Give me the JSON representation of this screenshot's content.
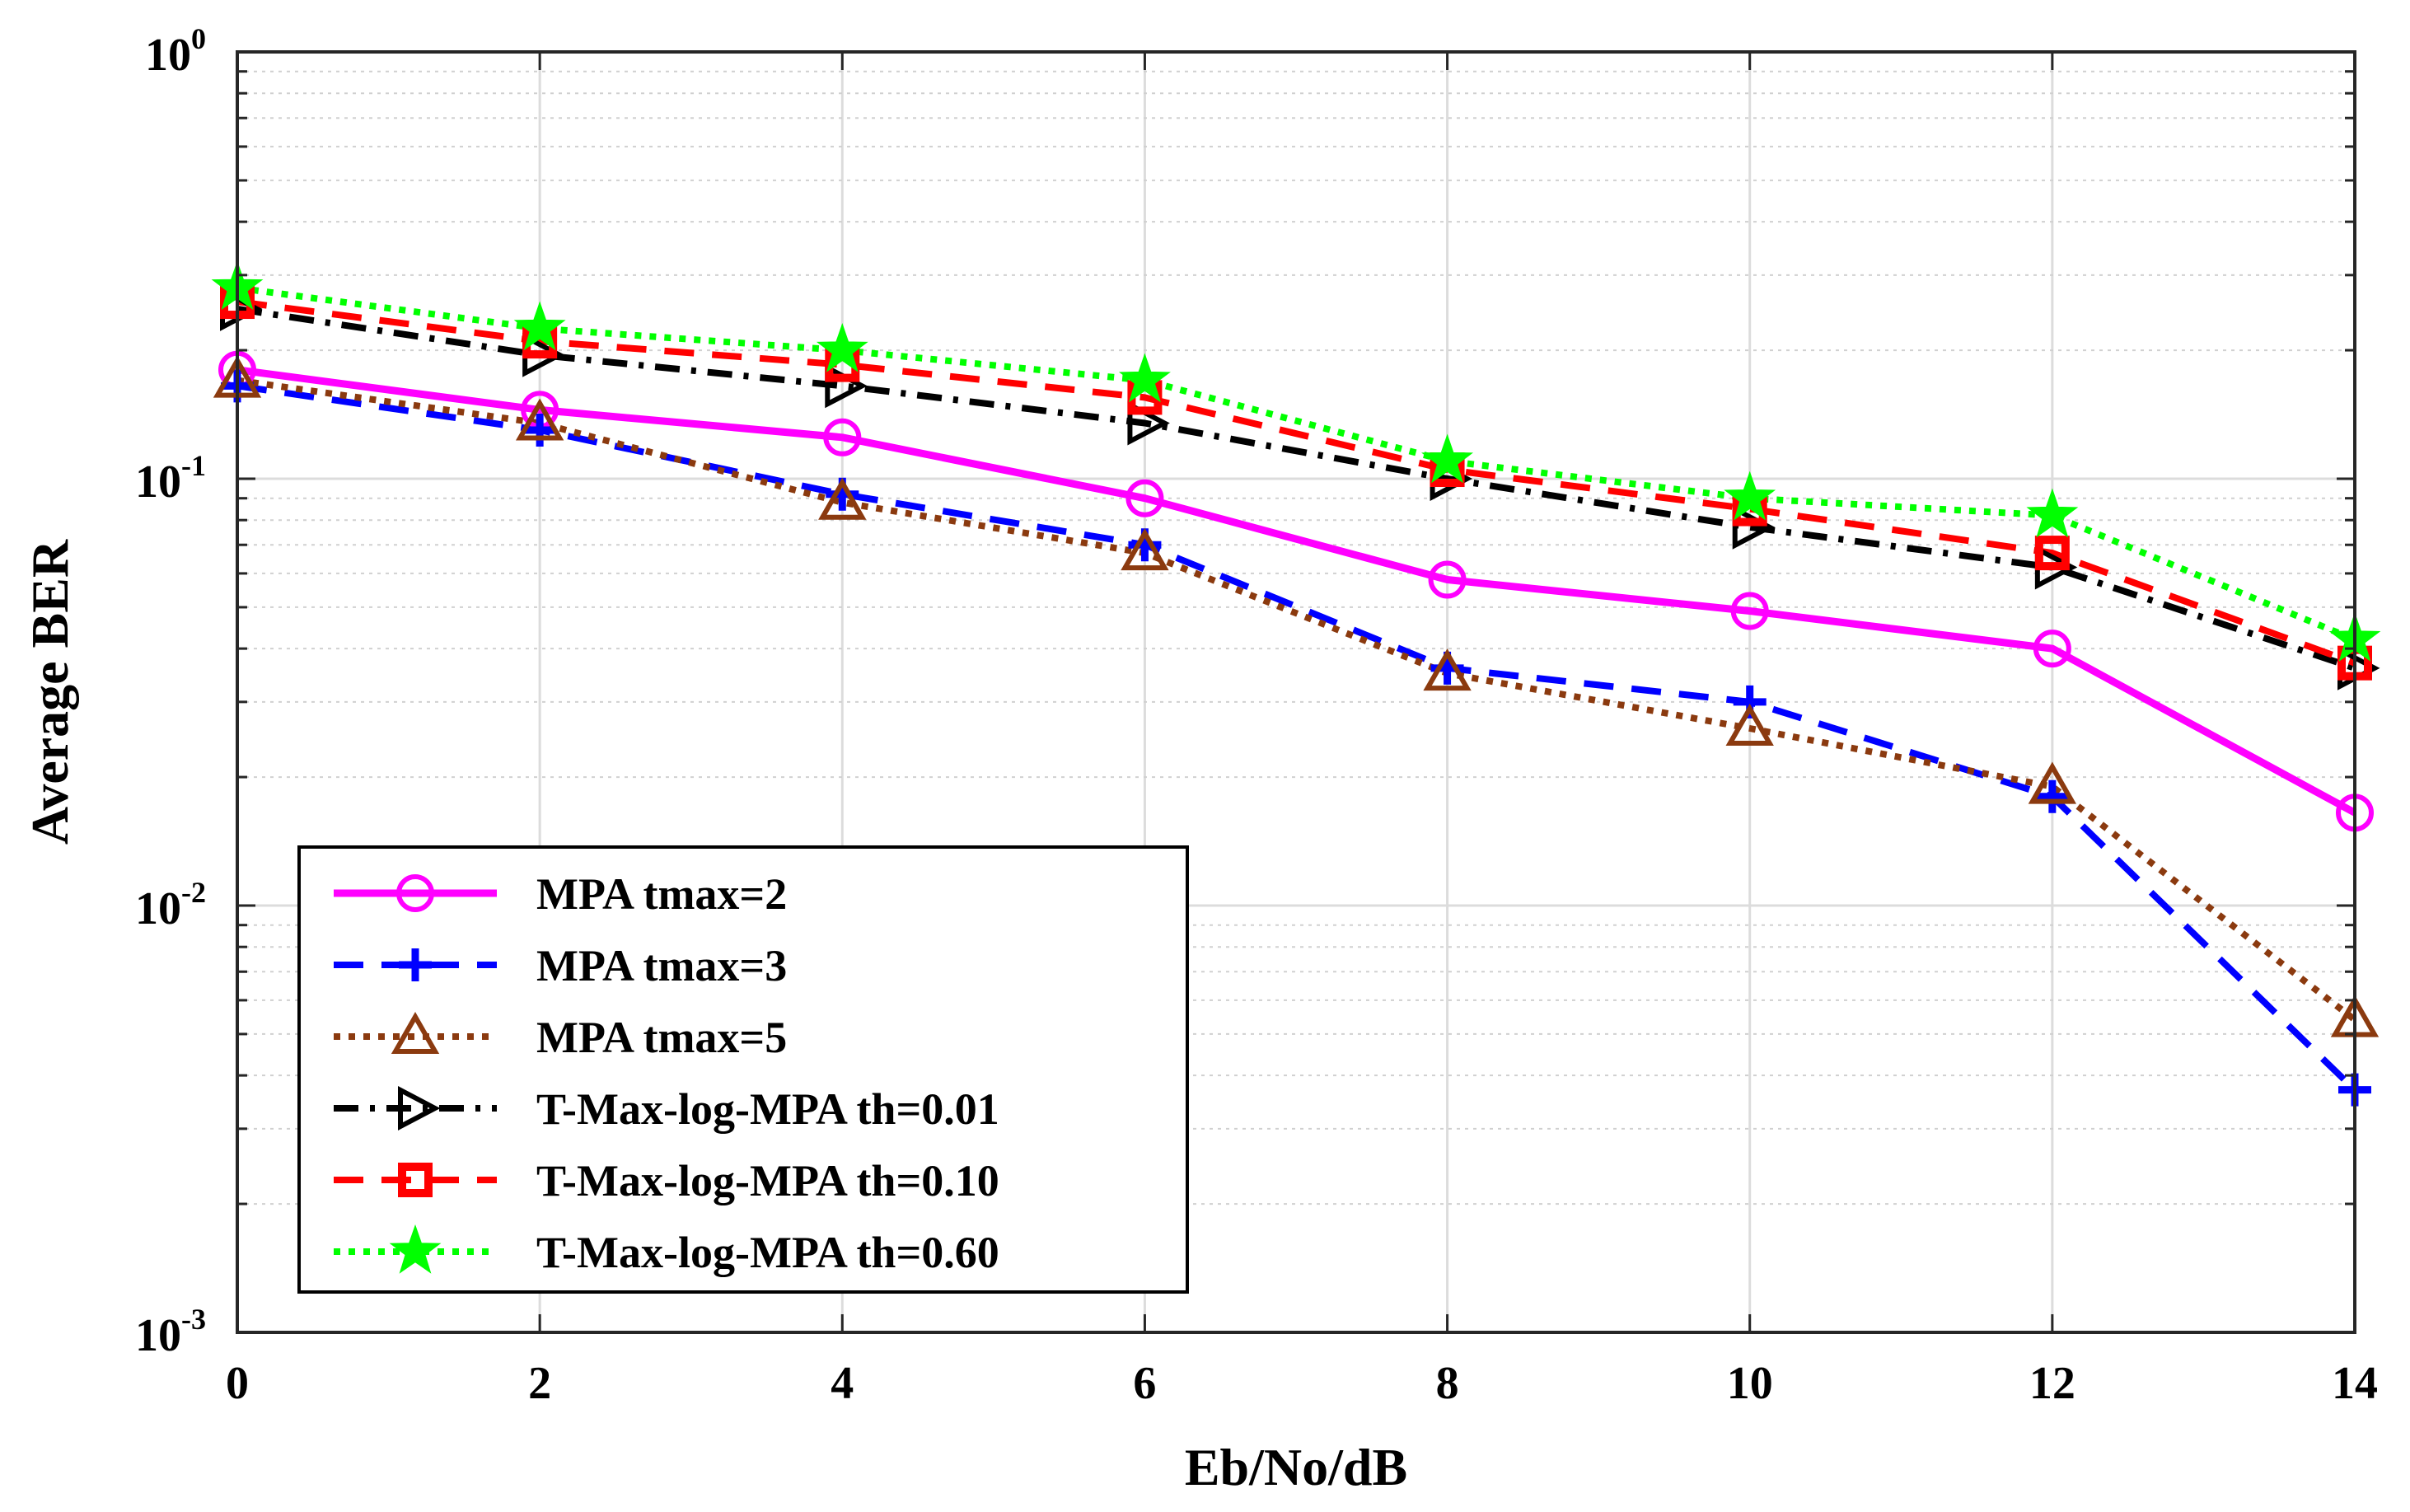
{
  "chart_data": {
    "type": "line",
    "title": "",
    "xlabel": "Eb/No/dB",
    "ylabel": "Average BER",
    "xlim": [
      0,
      14
    ],
    "ylim": [
      0.001,
      1
    ],
    "yscale": "log",
    "grid": true,
    "legend_position": "bottom-left",
    "x_ticks": [
      {
        "value": 0,
        "label": "0"
      },
      {
        "value": 2,
        "label": "2"
      },
      {
        "value": 4,
        "label": "4"
      },
      {
        "value": 6,
        "label": "6"
      },
      {
        "value": 8,
        "label": "8"
      },
      {
        "value": 10,
        "label": "10"
      },
      {
        "value": 12,
        "label": "12"
      },
      {
        "value": 14,
        "label": "14"
      }
    ],
    "y_ticks": [
      {
        "value": 1,
        "base": "10",
        "exp": "0"
      },
      {
        "value": 0.1,
        "base": "10",
        "exp": "-1"
      },
      {
        "value": 0.01,
        "base": "10",
        "exp": "-2"
      },
      {
        "value": 0.001,
        "base": "10",
        "exp": "-3"
      }
    ],
    "x": [
      0,
      2,
      4,
      6,
      8,
      10,
      12,
      14
    ],
    "series": [
      {
        "name": "MPA tmax=2",
        "color": "#ff00ff",
        "dash": "solid",
        "marker": "circle",
        "values": [
          0.18,
          0.145,
          0.125,
          0.09,
          0.058,
          0.049,
          0.04,
          0.0165
        ]
      },
      {
        "name": "MPA tmax=3",
        "color": "#0000ff",
        "dash": "dashed",
        "marker": "plus",
        "values": [
          0.165,
          0.13,
          0.092,
          0.07,
          0.036,
          0.03,
          0.018,
          0.0037
        ]
      },
      {
        "name": "MPA tmax=5",
        "color": "#8b3a0f",
        "dash": "dotted",
        "marker": "triangle",
        "values": [
          0.17,
          0.135,
          0.088,
          0.067,
          0.035,
          0.026,
          0.019,
          0.0054
        ]
      },
      {
        "name": "T-Max-log-MPA th=0.01",
        "color": "#000000",
        "dash": "dashdot",
        "marker": "triangle-right",
        "values": [
          0.25,
          0.195,
          0.165,
          0.135,
          0.1,
          0.077,
          0.062,
          0.036
        ]
      },
      {
        "name": "T-Max-log-MPA th=0.10",
        "color": "#ff0000",
        "dash": "dashed",
        "marker": "square",
        "values": [
          0.26,
          0.21,
          0.185,
          0.155,
          0.105,
          0.085,
          0.067,
          0.037
        ]
      },
      {
        "name": "T-Max-log-MPA th=0.60",
        "color": "#00ff00",
        "dash": "dotted",
        "marker": "star",
        "values": [
          0.28,
          0.225,
          0.2,
          0.17,
          0.11,
          0.09,
          0.082,
          0.042
        ]
      }
    ]
  }
}
